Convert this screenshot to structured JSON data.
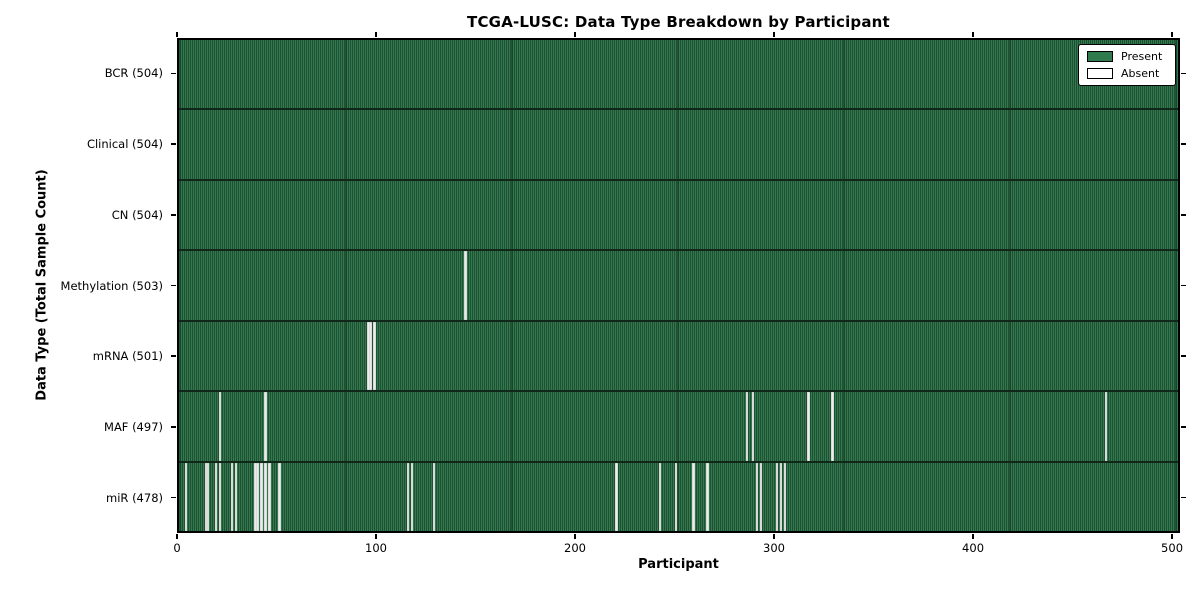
{
  "title": "TCGA-LUSC: Data Type Breakdown by Participant",
  "colors": {
    "present_fill": "#2f7b4d",
    "present_edge": "#224f34",
    "absent_fill": "#ececec",
    "frame": "#000000",
    "background": "#ffffff"
  },
  "chart_data": {
    "type": "heatmap",
    "subtype": "presence-absence-matrix",
    "title": "TCGA-LUSC: Data Type Breakdown by Participant",
    "xlabel": "Participant",
    "ylabel": "Data Type (Total Sample Count)",
    "x_ticks": [
      0,
      100,
      200,
      300,
      400,
      500
    ],
    "x_range": [
      0,
      504
    ],
    "total_participants": 504,
    "grid": false,
    "legend_position": "upper right",
    "legend": [
      {
        "label": "Present",
        "color": "#2f7b4d"
      },
      {
        "label": "Absent",
        "color": "#ffffff"
      }
    ],
    "rows": [
      {
        "label": "BCR (504)",
        "name": "BCR",
        "present_count": 504,
        "absent_participants": []
      },
      {
        "label": "Clinical (504)",
        "name": "Clinical",
        "present_count": 504,
        "absent_participants": []
      },
      {
        "label": "CN (504)",
        "name": "CN",
        "present_count": 504,
        "absent_participants": []
      },
      {
        "label": "Methylation (503)",
        "name": "Methylation",
        "present_count": 503,
        "absent_participants": [
          144
        ]
      },
      {
        "label": "mRNA (501)",
        "name": "mRNA",
        "present_count": 501,
        "absent_participants": [
          95,
          96,
          98
        ]
      },
      {
        "label": "MAF (497)",
        "name": "MAF",
        "present_count": 497,
        "absent_participants": [
          20,
          43,
          286,
          289,
          317,
          329,
          467
        ]
      },
      {
        "label": "miR (478)",
        "name": "miR",
        "present_count": 478,
        "absent_participants": [
          3,
          13,
          14,
          18,
          20,
          26,
          28,
          38,
          39,
          41,
          43,
          45,
          50,
          115,
          117,
          128,
          220,
          242,
          250,
          259,
          266,
          291,
          293,
          301,
          303,
          305
        ]
      }
    ]
  }
}
